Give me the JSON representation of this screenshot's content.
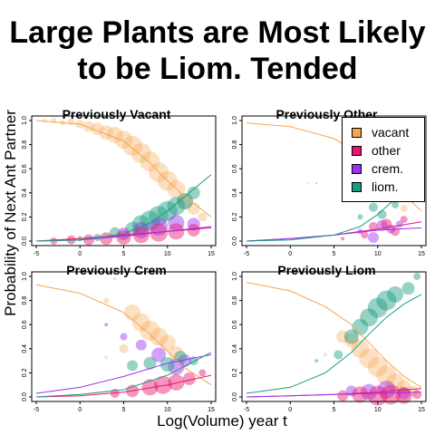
{
  "title_line1": "Large Plants are Most Likely",
  "title_line2": "to be Liom. Tended",
  "xlabel": "Log(Volume) year t",
  "ylabel": "Probability of Next Ant Partner",
  "colors": {
    "vacant": "#f5a650",
    "other": "#e8176e",
    "crem": "#9b30f5",
    "liom": "#1a9c80"
  },
  "legend": [
    {
      "label": "vacant",
      "color": "#f5a650"
    },
    {
      "label": "other",
      "color": "#e8176e"
    },
    {
      "label": "crem.",
      "color": "#9b30f5"
    },
    {
      "label": "liom.",
      "color": "#1a9c80"
    }
  ],
  "chart_data": [
    {
      "type": "scatter",
      "title": "Previously Vacant",
      "xlim": [
        -5,
        15
      ],
      "ylim": [
        0,
        1
      ],
      "xticks": [
        "-5",
        "0",
        "5",
        "10",
        "15"
      ],
      "yticks": [
        "0.0",
        "0.2",
        "0.4",
        "0.6",
        "0.8",
        "1.0"
      ],
      "curves": [
        {
          "name": "vacant",
          "x": [
            -5,
            0,
            5,
            8,
            10,
            12,
            15
          ],
          "y": [
            1.0,
            0.97,
            0.83,
            0.65,
            0.5,
            0.37,
            0.2
          ]
        },
        {
          "name": "other",
          "x": [
            -5,
            0,
            5,
            10,
            15
          ],
          "y": [
            0.0,
            0.02,
            0.05,
            0.08,
            0.11
          ]
        },
        {
          "name": "crem",
          "x": [
            -5,
            0,
            5,
            10,
            15
          ],
          "y": [
            0.0,
            0.01,
            0.04,
            0.08,
            0.12
          ]
        },
        {
          "name": "liom",
          "x": [
            -5,
            0,
            5,
            8,
            10,
            12,
            15
          ],
          "y": [
            0.0,
            0.01,
            0.06,
            0.15,
            0.25,
            0.37,
            0.55
          ]
        }
      ],
      "points": [
        {
          "s": "vacant",
          "x": -4,
          "y": 1.0,
          "r": 2
        },
        {
          "s": "vacant",
          "x": -3,
          "y": 1.0,
          "r": 3
        },
        {
          "s": "vacant",
          "x": -2,
          "y": 0.98,
          "r": 3
        },
        {
          "s": "vacant",
          "x": -1,
          "y": 0.99,
          "r": 4
        },
        {
          "s": "vacant",
          "x": 0,
          "y": 0.97,
          "r": 5
        },
        {
          "s": "vacant",
          "x": 1,
          "y": 0.95,
          "r": 6
        },
        {
          "s": "vacant",
          "x": 2,
          "y": 0.93,
          "r": 7
        },
        {
          "s": "vacant",
          "x": 3,
          "y": 0.9,
          "r": 8
        },
        {
          "s": "vacant",
          "x": 4,
          "y": 0.88,
          "r": 9
        },
        {
          "s": "vacant",
          "x": 5,
          "y": 0.84,
          "r": 10
        },
        {
          "s": "vacant",
          "x": 6,
          "y": 0.79,
          "r": 11
        },
        {
          "s": "vacant",
          "x": 7,
          "y": 0.73,
          "r": 11
        },
        {
          "s": "vacant",
          "x": 8,
          "y": 0.66,
          "r": 11
        },
        {
          "s": "vacant",
          "x": 9,
          "y": 0.57,
          "r": 11
        },
        {
          "s": "vacant",
          "x": 10,
          "y": 0.5,
          "r": 11
        },
        {
          "s": "vacant",
          "x": 11,
          "y": 0.43,
          "r": 10
        },
        {
          "s": "vacant",
          "x": 12,
          "y": 0.33,
          "r": 9
        },
        {
          "s": "vacant",
          "x": 13,
          "y": 0.27,
          "r": 7
        },
        {
          "s": "vacant",
          "x": 14,
          "y": 0.2,
          "r": 5
        },
        {
          "s": "liom",
          "x": 0,
          "y": 0.02,
          "r": 3
        },
        {
          "s": "liom",
          "x": 2,
          "y": 0.03,
          "r": 4
        },
        {
          "s": "liom",
          "x": 4,
          "y": 0.07,
          "r": 6
        },
        {
          "s": "liom",
          "x": 6,
          "y": 0.1,
          "r": 8
        },
        {
          "s": "liom",
          "x": 7,
          "y": 0.14,
          "r": 10
        },
        {
          "s": "liom",
          "x": 8,
          "y": 0.17,
          "r": 11
        },
        {
          "s": "liom",
          "x": 9,
          "y": 0.21,
          "r": 11
        },
        {
          "s": "liom",
          "x": 10,
          "y": 0.25,
          "r": 11
        },
        {
          "s": "liom",
          "x": 11,
          "y": 0.29,
          "r": 10
        },
        {
          "s": "liom",
          "x": 12,
          "y": 0.33,
          "r": 9
        },
        {
          "s": "liom",
          "x": 13,
          "y": 0.4,
          "r": 7
        },
        {
          "s": "crem",
          "x": 5,
          "y": 0.06,
          "r": 7
        },
        {
          "s": "crem",
          "x": 7,
          "y": 0.09,
          "r": 9
        },
        {
          "s": "crem",
          "x": 9,
          "y": 0.12,
          "r": 10
        },
        {
          "s": "crem",
          "x": 11,
          "y": 0.15,
          "r": 9
        },
        {
          "s": "crem",
          "x": 13,
          "y": 0.14,
          "r": 7
        },
        {
          "s": "other",
          "x": -3,
          "y": 0.0,
          "r": 4
        },
        {
          "s": "other",
          "x": -1,
          "y": 0.01,
          "r": 5
        },
        {
          "s": "other",
          "x": 1,
          "y": 0.01,
          "r": 6
        },
        {
          "s": "other",
          "x": 3,
          "y": 0.02,
          "r": 7
        },
        {
          "s": "other",
          "x": 5,
          "y": 0.03,
          "r": 8
        },
        {
          "s": "other",
          "x": 7,
          "y": 0.05,
          "r": 9
        },
        {
          "s": "other",
          "x": 9,
          "y": 0.07,
          "r": 10
        },
        {
          "s": "other",
          "x": 11,
          "y": 0.08,
          "r": 9
        },
        {
          "s": "other",
          "x": 13,
          "y": 0.09,
          "r": 7
        }
      ]
    },
    {
      "type": "scatter",
      "title": "Previously Other",
      "xlim": [
        -5,
        15
      ],
      "ylim": [
        0,
        1
      ],
      "xticks": [
        "-5",
        "0",
        "5",
        "10",
        "15"
      ],
      "yticks": [
        "0.0",
        "0.2",
        "0.4",
        "0.6",
        "0.8",
        "1.0"
      ],
      "curves": [
        {
          "name": "vacant",
          "x": [
            -5,
            0,
            5,
            8,
            10,
            12,
            15
          ],
          "y": [
            0.98,
            0.95,
            0.85,
            0.72,
            0.6,
            0.45,
            0.25
          ]
        },
        {
          "name": "other",
          "x": [
            -5,
            0,
            5,
            10,
            15
          ],
          "y": [
            0.0,
            0.02,
            0.05,
            0.1,
            0.16
          ]
        },
        {
          "name": "crem",
          "x": [
            -5,
            0,
            5,
            10,
            15
          ],
          "y": [
            0.0,
            0.02,
            0.05,
            0.09,
            0.11
          ]
        },
        {
          "name": "liom",
          "x": [
            -5,
            0,
            5,
            8,
            10,
            12,
            15
          ],
          "y": [
            0.0,
            0.01,
            0.05,
            0.12,
            0.22,
            0.35,
            0.55
          ]
        }
      ],
      "points": [
        {
          "s": "vacant",
          "x": 2,
          "y": 0.48,
          "r": 1
        },
        {
          "s": "vacant",
          "x": 7,
          "y": 0.75,
          "r": 3
        },
        {
          "s": "vacant",
          "x": 9,
          "y": 0.62,
          "r": 6
        },
        {
          "s": "vacant",
          "x": 10,
          "y": 0.55,
          "r": 6
        },
        {
          "s": "vacant",
          "x": 11,
          "y": 0.45,
          "r": 6
        },
        {
          "s": "vacant",
          "x": 12,
          "y": 0.35,
          "r": 5
        },
        {
          "s": "vacant",
          "x": 13,
          "y": 0.27,
          "r": 4
        },
        {
          "s": "liom",
          "x": 3,
          "y": 0.48,
          "r": 1
        },
        {
          "s": "liom",
          "x": 8,
          "y": 0.2,
          "r": 3
        },
        {
          "s": "liom",
          "x": 9.5,
          "y": 0.28,
          "r": 5
        },
        {
          "s": "liom",
          "x": 10.5,
          "y": 0.22,
          "r": 5
        },
        {
          "s": "liom",
          "x": 12,
          "y": 0.3,
          "r": 4
        },
        {
          "s": "liom",
          "x": 13,
          "y": 0.4,
          "r": 4
        },
        {
          "s": "crem",
          "x": 8,
          "y": 0.08,
          "r": 3
        },
        {
          "s": "crem",
          "x": 9.5,
          "y": 0.03,
          "r": 6
        },
        {
          "s": "crem",
          "x": 10.5,
          "y": 0.13,
          "r": 6
        },
        {
          "s": "crem",
          "x": 11.5,
          "y": 0.1,
          "r": 5
        },
        {
          "s": "crem",
          "x": 12.5,
          "y": 0.14,
          "r": 4
        },
        {
          "s": "other",
          "x": 6,
          "y": 0.02,
          "r": 2
        },
        {
          "s": "other",
          "x": 8.5,
          "y": 0.05,
          "r": 4
        },
        {
          "s": "other",
          "x": 9.5,
          "y": 0.12,
          "r": 5
        },
        {
          "s": "other",
          "x": 11,
          "y": 0.14,
          "r": 6
        },
        {
          "s": "other",
          "x": 12,
          "y": 0.08,
          "r": 5
        },
        {
          "s": "other",
          "x": 13,
          "y": 0.18,
          "r": 4
        }
      ]
    },
    {
      "type": "scatter",
      "title": "Previously Crem",
      "xlim": [
        -5,
        15
      ],
      "ylim": [
        0,
        1
      ],
      "xticks": [
        "-5",
        "0",
        "5",
        "10",
        "15"
      ],
      "yticks": [
        "0.0",
        "0.2",
        "0.4",
        "0.6",
        "0.8",
        "1.0"
      ],
      "curves": [
        {
          "name": "vacant",
          "x": [
            -5,
            0,
            5,
            8,
            10,
            12,
            15
          ],
          "y": [
            0.93,
            0.86,
            0.7,
            0.52,
            0.38,
            0.24,
            0.1
          ]
        },
        {
          "name": "other",
          "x": [
            -5,
            0,
            5,
            10,
            15
          ],
          "y": [
            0.0,
            0.01,
            0.04,
            0.1,
            0.18
          ]
        },
        {
          "name": "crem",
          "x": [
            -5,
            0,
            5,
            10,
            15
          ],
          "y": [
            0.03,
            0.08,
            0.17,
            0.28,
            0.35
          ]
        },
        {
          "name": "liom",
          "x": [
            -5,
            0,
            5,
            10,
            15
          ],
          "y": [
            0.0,
            0.02,
            0.06,
            0.18,
            0.37
          ]
        }
      ],
      "points": [
        {
          "s": "vacant",
          "x": 3,
          "y": 0.8,
          "r": 3
        },
        {
          "s": "vacant",
          "x": 4,
          "y": 0.98,
          "r": 2
        },
        {
          "s": "vacant",
          "x": 6,
          "y": 0.7,
          "r": 9
        },
        {
          "s": "vacant",
          "x": 7,
          "y": 0.62,
          "r": 10
        },
        {
          "s": "vacant",
          "x": 8,
          "y": 0.55,
          "r": 11
        },
        {
          "s": "vacant",
          "x": 9,
          "y": 0.5,
          "r": 10
        },
        {
          "s": "vacant",
          "x": 10,
          "y": 0.45,
          "r": 9
        },
        {
          "s": "vacant",
          "x": 11,
          "y": 0.36,
          "r": 8
        },
        {
          "s": "vacant",
          "x": 5,
          "y": 0.4,
          "r": 5
        },
        {
          "s": "vacant",
          "x": 3,
          "y": 0.33,
          "r": 2
        },
        {
          "s": "crem",
          "x": 5,
          "y": 0.5,
          "r": 4
        },
        {
          "s": "crem",
          "x": 7,
          "y": 0.43,
          "r": 6
        },
        {
          "s": "crem",
          "x": 9,
          "y": 0.35,
          "r": 8
        },
        {
          "s": "crem",
          "x": 11,
          "y": 0.25,
          "r": 9
        },
        {
          "s": "crem",
          "x": 12,
          "y": 0.3,
          "r": 7
        },
        {
          "s": "crem",
          "x": 3,
          "y": 0.6,
          "r": 2
        },
        {
          "s": "liom",
          "x": 6,
          "y": 0.26,
          "r": 6
        },
        {
          "s": "liom",
          "x": 8,
          "y": 0.28,
          "r": 7
        },
        {
          "s": "liom",
          "x": 10,
          "y": 0.27,
          "r": 8
        },
        {
          "s": "liom",
          "x": 11.5,
          "y": 0.33,
          "r": 7
        },
        {
          "s": "liom",
          "x": 13,
          "y": 0.3,
          "r": 5
        },
        {
          "s": "other",
          "x": 4,
          "y": 0.03,
          "r": 5
        },
        {
          "s": "other",
          "x": 6,
          "y": 0.05,
          "r": 7
        },
        {
          "s": "other",
          "x": 8,
          "y": 0.08,
          "r": 9
        },
        {
          "s": "other",
          "x": 9.5,
          "y": 0.1,
          "r": 10
        },
        {
          "s": "other",
          "x": 11,
          "y": 0.12,
          "r": 9
        },
        {
          "s": "other",
          "x": 12.5,
          "y": 0.15,
          "r": 7
        },
        {
          "s": "other",
          "x": 14,
          "y": 0.2,
          "r": 4
        }
      ]
    },
    {
      "type": "scatter",
      "title": "Previously Liom",
      "xlim": [
        -5,
        15
      ],
      "ylim": [
        0,
        1
      ],
      "xticks": [
        "-5",
        "0",
        "5",
        "10",
        "15"
      ],
      "yticks": [
        "0.0",
        "0.2",
        "0.4",
        "0.6",
        "0.8",
        "1.0"
      ],
      "curves": [
        {
          "name": "vacant",
          "x": [
            -5,
            0,
            4,
            7,
            9,
            11,
            13,
            15
          ],
          "y": [
            0.95,
            0.88,
            0.75,
            0.6,
            0.45,
            0.3,
            0.17,
            0.08
          ]
        },
        {
          "name": "other",
          "x": [
            -5,
            0,
            5,
            10,
            15
          ],
          "y": [
            0.0,
            0.01,
            0.02,
            0.04,
            0.07
          ]
        },
        {
          "name": "crem",
          "x": [
            -5,
            0,
            5,
            10,
            15
          ],
          "y": [
            0.0,
            0.01,
            0.02,
            0.03,
            0.04
          ]
        },
        {
          "name": "liom",
          "x": [
            -5,
            0,
            4,
            7,
            9,
            11,
            13,
            15
          ],
          "y": [
            0.03,
            0.08,
            0.2,
            0.37,
            0.52,
            0.66,
            0.77,
            0.85
          ]
        }
      ],
      "points": [
        {
          "s": "vacant",
          "x": 4,
          "y": 0.35,
          "r": 2
        },
        {
          "s": "vacant",
          "x": 6,
          "y": 0.5,
          "r": 7
        },
        {
          "s": "vacant",
          "x": 7,
          "y": 0.47,
          "r": 8
        },
        {
          "s": "vacant",
          "x": 8,
          "y": 0.4,
          "r": 10
        },
        {
          "s": "vacant",
          "x": 9,
          "y": 0.32,
          "r": 11
        },
        {
          "s": "vacant",
          "x": 10,
          "y": 0.25,
          "r": 11
        },
        {
          "s": "vacant",
          "x": 11,
          "y": 0.18,
          "r": 11
        },
        {
          "s": "vacant",
          "x": 12,
          "y": 0.12,
          "r": 10
        },
        {
          "s": "vacant",
          "x": 13,
          "y": 0.08,
          "r": 8
        },
        {
          "s": "vacant",
          "x": 14,
          "y": 0.05,
          "r": 6
        },
        {
          "s": "liom",
          "x": 3,
          "y": 0.3,
          "r": 2
        },
        {
          "s": "liom",
          "x": 5.5,
          "y": 0.35,
          "r": 5
        },
        {
          "s": "liom",
          "x": 7,
          "y": 0.5,
          "r": 8
        },
        {
          "s": "liom",
          "x": 8,
          "y": 0.58,
          "r": 9
        },
        {
          "s": "liom",
          "x": 9,
          "y": 0.66,
          "r": 10
        },
        {
          "s": "liom",
          "x": 10,
          "y": 0.74,
          "r": 11
        },
        {
          "s": "liom",
          "x": 11,
          "y": 0.8,
          "r": 11
        },
        {
          "s": "liom",
          "x": 12,
          "y": 0.85,
          "r": 9
        },
        {
          "s": "liom",
          "x": 13.5,
          "y": 0.9,
          "r": 7
        },
        {
          "s": "liom",
          "x": 14.5,
          "y": 1.0,
          "r": 4
        },
        {
          "s": "crem",
          "x": 7,
          "y": 0.05,
          "r": 6
        },
        {
          "s": "crem",
          "x": 9,
          "y": 0.04,
          "r": 9
        },
        {
          "s": "crem",
          "x": 11,
          "y": 0.06,
          "r": 10
        },
        {
          "s": "crem",
          "x": 13,
          "y": 0.03,
          "r": 7
        },
        {
          "s": "other",
          "x": 6,
          "y": 0.01,
          "r": 6
        },
        {
          "s": "other",
          "x": 8,
          "y": 0.02,
          "r": 9
        },
        {
          "s": "other",
          "x": 10,
          "y": 0.01,
          "r": 11
        },
        {
          "s": "other",
          "x": 11.5,
          "y": 0.02,
          "r": 11
        },
        {
          "s": "other",
          "x": 13,
          "y": 0.01,
          "r": 9
        },
        {
          "s": "other",
          "x": 14.5,
          "y": 0.02,
          "r": 5
        }
      ]
    }
  ]
}
